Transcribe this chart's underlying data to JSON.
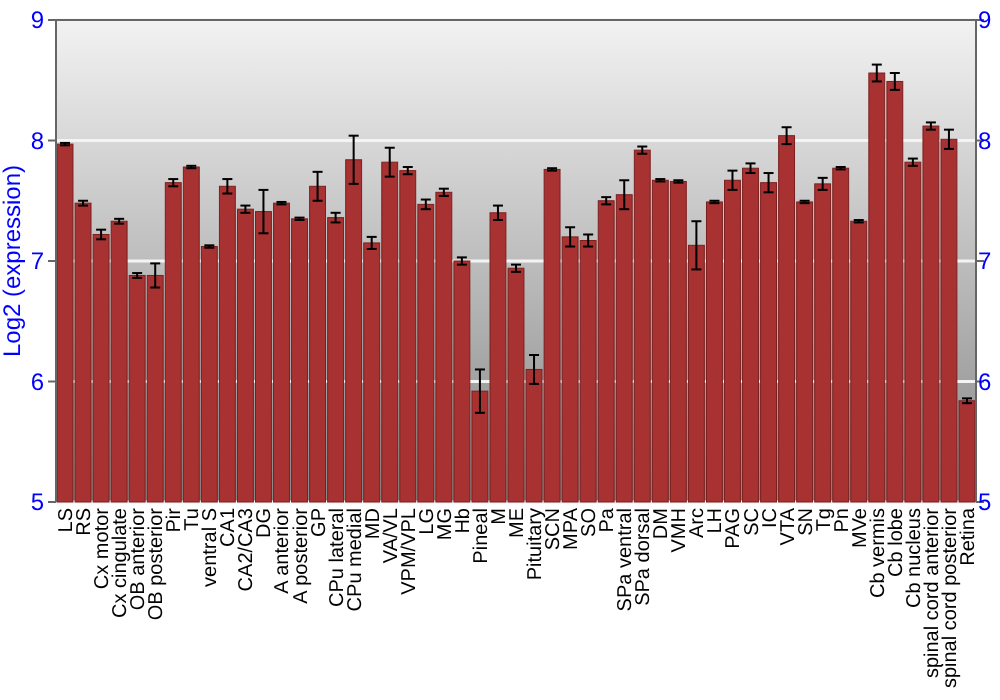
{
  "chart_data": {
    "type": "bar",
    "ylabel": "Log2 (expression)",
    "categories": [
      "LS",
      "RS",
      "Cx motor",
      "Cx cingulate",
      "OB anterior",
      "OB posterior",
      "Pir",
      "Tu",
      "ventral S",
      "CA1",
      "CA2/CA3",
      "DG",
      "A anterior",
      "A posterior",
      "GP",
      "CPu lateral",
      "CPu medial",
      "MD",
      "VA/VL",
      "VPM/VPL",
      "LG",
      "MG",
      "Hb",
      "Pineal",
      "M",
      "ME",
      "Pituitary",
      "SCN",
      "MPA",
      "SO",
      "Pa",
      "SPa ventral",
      "SPa dorsal",
      "DM",
      "VMH",
      "Arc",
      "LH",
      "PAG",
      "SC",
      "IC",
      "VTA",
      "SN",
      "Tg",
      "Pn",
      "MVe",
      "Cb vermis",
      "Cb lobe",
      "Cb nucleus",
      "spinal cord anterior",
      "spinal cord posterior",
      "Retina"
    ],
    "values": [
      7.97,
      7.48,
      7.22,
      7.33,
      6.88,
      6.88,
      7.65,
      7.78,
      7.12,
      7.62,
      7.43,
      7.41,
      7.48,
      7.35,
      7.62,
      7.36,
      7.84,
      7.15,
      7.82,
      7.75,
      7.47,
      7.57,
      7.0,
      5.92,
      7.4,
      6.94,
      6.1,
      7.76,
      7.2,
      7.17,
      7.5,
      7.55,
      7.92,
      7.67,
      7.66,
      7.13,
      7.49,
      7.67,
      7.77,
      7.65,
      8.04,
      7.49,
      7.64,
      7.77,
      7.33,
      8.56,
      8.49,
      7.82,
      8.12,
      8.01,
      5.84
    ],
    "errors": [
      0.01,
      0.02,
      0.04,
      0.02,
      0.02,
      0.1,
      0.03,
      0.01,
      0.01,
      0.06,
      0.03,
      0.18,
      0.01,
      0.01,
      0.12,
      0.04,
      0.2,
      0.05,
      0.12,
      0.03,
      0.04,
      0.03,
      0.03,
      0.18,
      0.06,
      0.03,
      0.12,
      0.01,
      0.08,
      0.05,
      0.03,
      0.12,
      0.03,
      0.01,
      0.01,
      0.2,
      0.01,
      0.08,
      0.04,
      0.08,
      0.07,
      0.01,
      0.05,
      0.01,
      0.01,
      0.07,
      0.07,
      0.03,
      0.03,
      0.08,
      0.02
    ],
    "color": "#a83232",
    "ylim": [
      5,
      9
    ],
    "yticks": [
      5,
      6,
      7,
      8,
      9
    ],
    "y2lim": [
      5,
      9
    ],
    "y2ticks": [
      5,
      6,
      7,
      8,
      9
    ],
    "grid": "y"
  }
}
